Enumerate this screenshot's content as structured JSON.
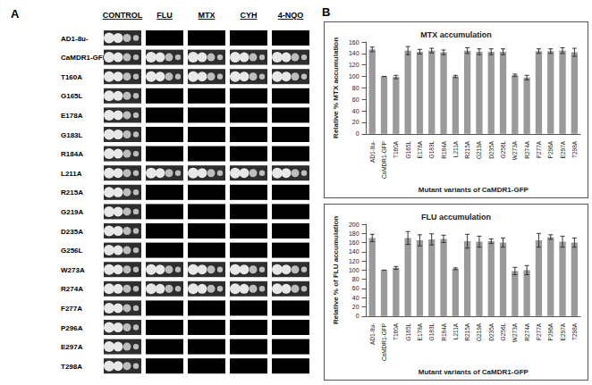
{
  "panel_a": {
    "label": "A",
    "columns": [
      "CONTROL",
      "FLU",
      "MTX",
      "CYH",
      "4-NQO"
    ],
    "rows": [
      {
        "strain": "AD1-8u-",
        "spots": [
          4,
          0,
          0,
          0,
          0
        ]
      },
      {
        "strain": "CaMDR1-GFP",
        "spots": [
          4,
          4,
          4,
          4,
          4
        ]
      },
      {
        "strain": "T160A",
        "spots": [
          4,
          4,
          4,
          4,
          4
        ]
      },
      {
        "strain": "G165L",
        "spots": [
          4,
          0,
          0,
          0,
          0
        ]
      },
      {
        "strain": "E178A",
        "spots": [
          4,
          0,
          0,
          0,
          0
        ]
      },
      {
        "strain": "G183L",
        "spots": [
          4,
          0,
          0,
          0,
          0
        ]
      },
      {
        "strain": "R184A",
        "spots": [
          4,
          0,
          0,
          0,
          0
        ]
      },
      {
        "strain": "L211A",
        "spots": [
          4,
          4,
          4,
          4,
          4
        ]
      },
      {
        "strain": "R215A",
        "spots": [
          4,
          0,
          0,
          0,
          0
        ]
      },
      {
        "strain": "G219A",
        "spots": [
          4,
          0,
          0,
          0,
          0
        ]
      },
      {
        "strain": "D235A",
        "spots": [
          4,
          0,
          0,
          0,
          0
        ]
      },
      {
        "strain": "G256L",
        "spots": [
          4,
          0,
          0,
          0,
          0
        ]
      },
      {
        "strain": "W273A",
        "spots": [
          4,
          4,
          4,
          4,
          4
        ]
      },
      {
        "strain": "R274A",
        "spots": [
          4,
          4,
          4,
          4,
          4
        ]
      },
      {
        "strain": "F277A",
        "spots": [
          4,
          0,
          0,
          0,
          0
        ]
      },
      {
        "strain": "P296A",
        "spots": [
          4,
          0,
          0,
          0,
          0
        ]
      },
      {
        "strain": "E297A",
        "spots": [
          4,
          0,
          0,
          0,
          0
        ]
      },
      {
        "strain": "T298A",
        "spots": [
          4,
          0,
          0,
          0,
          0
        ]
      }
    ]
  },
  "panel_b_label": "B",
  "chart_data": [
    {
      "type": "bar",
      "title": "MTX accumulation",
      "x_label": "Mutant variants of CaMDR1-GFP",
      "y_label": "Relative % MTX accumulation",
      "categories": [
        "AD1-8u-",
        "CaMDR1-GFP",
        "T160A",
        "G165L",
        "E178A",
        "G183L",
        "R184A",
        "L211A",
        "R215A",
        "G219A",
        "D235A",
        "G256L",
        "W273A",
        "R274A",
        "F277A",
        "P296A",
        "E297A",
        "T298A"
      ],
      "values": [
        147,
        100,
        99,
        145,
        143,
        145,
        142,
        100,
        145,
        143,
        143,
        143,
        102,
        98,
        144,
        144,
        145,
        142
      ],
      "errors": [
        4,
        0,
        3,
        7,
        4,
        4,
        4,
        2,
        5,
        5,
        5,
        5,
        2,
        4,
        4,
        4,
        5,
        7
      ],
      "color": "#9a9a9a",
      "ylim": [
        0,
        160
      ],
      "yticks": [
        0,
        20,
        40,
        60,
        80,
        100,
        120,
        140,
        160
      ],
      "grid": false
    },
    {
      "type": "bar",
      "title": "FLU accumulation",
      "x_label": "Mutant variants of CaMDR1-GFP",
      "y_label": "Relative % of FLU accumulation",
      "categories": [
        "AD1-8u-",
        "CaMDR1-GFP",
        "T160A",
        "G165L",
        "E178A",
        "G183L",
        "R184A",
        "L211A",
        "R215A",
        "G219A",
        "D235A",
        "G256L",
        "W273A",
        "R274A",
        "F277A",
        "P296A",
        "E297A",
        "T298A"
      ],
      "values": [
        170,
        100,
        105,
        170,
        165,
        167,
        168,
        103,
        163,
        162,
        163,
        160,
        98,
        100,
        165,
        172,
        162,
        160
      ],
      "errors": [
        8,
        0,
        3,
        14,
        12,
        12,
        8,
        2,
        15,
        12,
        5,
        10,
        8,
        10,
        15,
        5,
        12,
        10
      ],
      "color": "#9a9a9a",
      "ylim": [
        0,
        200
      ],
      "yticks": [
        0,
        20,
        40,
        60,
        80,
        100,
        120,
        140,
        160,
        180,
        200
      ],
      "grid": false
    }
  ]
}
